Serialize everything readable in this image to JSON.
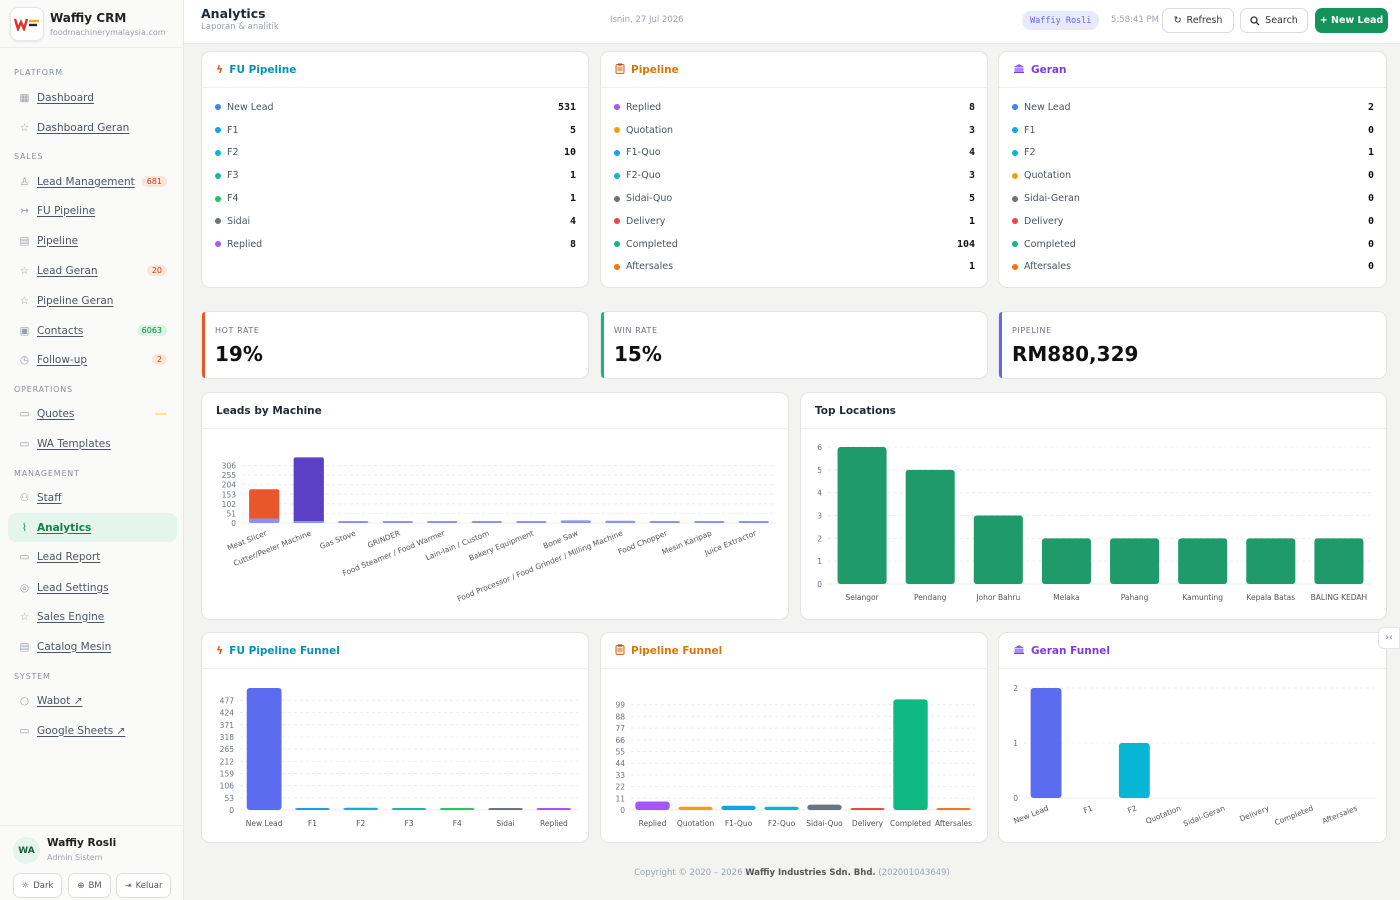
{
  "brand": {
    "name": "Waffiy CRM",
    "domain": "foodmachinerymalaysia.com"
  },
  "nav": {
    "sections": {
      "platform": "PLATFORM",
      "sales": "SALES",
      "operations": "OPERATIONS",
      "management": "MANAGEMENT",
      "system": "SYSTEM"
    },
    "items": [
      {
        "label": "Dashboard",
        "icon": "grid-icon"
      },
      {
        "label": "Dashboard Geran",
        "icon": "star-icon"
      },
      {
        "label": "Lead Management",
        "icon": "user-icon",
        "badge": "681"
      },
      {
        "label": "FU Pipeline",
        "icon": "arrows-icon"
      },
      {
        "label": "Pipeline",
        "icon": "table-icon"
      },
      {
        "label": "Lead Geran",
        "icon": "star-icon",
        "badge": "20"
      },
      {
        "label": "Pipeline Geran",
        "icon": "star-icon"
      },
      {
        "label": "Contacts",
        "icon": "contact-icon",
        "badge": "6063"
      },
      {
        "label": "Follow-up",
        "icon": "clock-icon",
        "badge": "2"
      },
      {
        "label": "Quotes",
        "icon": "document-icon"
      },
      {
        "label": "WA Templates",
        "icon": "document-icon"
      },
      {
        "label": "Staff",
        "icon": "users-icon"
      },
      {
        "label": "Analytics",
        "icon": "trend-icon"
      },
      {
        "label": "Lead Report",
        "icon": "document-icon"
      },
      {
        "label": "Lead Settings",
        "icon": "settings-icon"
      },
      {
        "label": "Sales Engine",
        "icon": "star-icon"
      },
      {
        "label": "Catalog Mesin",
        "icon": "table-icon"
      },
      {
        "label": "Wabot ↗",
        "icon": "chat-icon"
      },
      {
        "label": "Google Sheets ↗",
        "icon": "document-icon"
      }
    ]
  },
  "user": {
    "initials": "WA",
    "name": "Waffiy Rosli",
    "role": "Admin Sistem"
  },
  "footer_buttons": {
    "dark": "Dark",
    "lang": "BM",
    "logout": "Keluar"
  },
  "header": {
    "title": "Analytics",
    "subtitle": "Laporan & analitik",
    "date": "Isnin, 27 Jul 2026",
    "user_tag": "Waffiy Rosli",
    "time": "5:58:41 PM",
    "refresh": "Refresh",
    "search": "Search",
    "new_lead": "+ New Lead"
  },
  "colors": {
    "accent": "#13935a",
    "blue": "#3b82f6",
    "cyan": "#06b6d4",
    "green": "#22c55e",
    "emerald": "#10b981",
    "gray": "#6b7280",
    "purple": "#a855f7",
    "amber": "#f59e0b",
    "red": "#ef4444",
    "orange": "#f97316",
    "indigo": "#6366f1"
  },
  "fu_pipeline": {
    "title": "FU Pipeline",
    "rows": [
      {
        "label": "New Lead",
        "value": "531",
        "color": "#3b82f6"
      },
      {
        "label": "F1",
        "value": "5",
        "color": "#0ea5e9"
      },
      {
        "label": "F2",
        "value": "10",
        "color": "#06b6d4"
      },
      {
        "label": "F3",
        "value": "1",
        "color": "#14b8a6"
      },
      {
        "label": "F4",
        "value": "1",
        "color": "#22c55e"
      },
      {
        "label": "Sidai",
        "value": "4",
        "color": "#6b7280"
      },
      {
        "label": "Replied",
        "value": "8",
        "color": "#a855f7"
      }
    ]
  },
  "pipeline": {
    "title": "Pipeline",
    "rows": [
      {
        "label": "Replied",
        "value": "8",
        "color": "#a855f7"
      },
      {
        "label": "Quotation",
        "value": "3",
        "color": "#f59e0b"
      },
      {
        "label": "F1-Quo",
        "value": "4",
        "color": "#0ea5e9"
      },
      {
        "label": "F2-Quo",
        "value": "3",
        "color": "#06b6d4"
      },
      {
        "label": "Sidai-Quo",
        "value": "5",
        "color": "#6b7280"
      },
      {
        "label": "Delivery",
        "value": "1",
        "color": "#ef4444"
      },
      {
        "label": "Completed",
        "value": "104",
        "color": "#10b981"
      },
      {
        "label": "Aftersales",
        "value": "1",
        "color": "#f97316"
      }
    ]
  },
  "geran": {
    "title": "Geran",
    "rows": [
      {
        "label": "New Lead",
        "value": "2",
        "color": "#3b82f6"
      },
      {
        "label": "F1",
        "value": "0",
        "color": "#0ea5e9"
      },
      {
        "label": "F2",
        "value": "1",
        "color": "#06b6d4"
      },
      {
        "label": "Quotation",
        "value": "0",
        "color": "#f59e0b"
      },
      {
        "label": "Sidai-Geran",
        "value": "0",
        "color": "#6b7280"
      },
      {
        "label": "Delivery",
        "value": "0",
        "color": "#ef4444"
      },
      {
        "label": "Completed",
        "value": "0",
        "color": "#10b981"
      },
      {
        "label": "Aftersales",
        "value": "0",
        "color": "#f97316"
      }
    ]
  },
  "kpis": {
    "hot": {
      "label": "HOT RATE",
      "value": "19%",
      "color": "#e8572a"
    },
    "win": {
      "label": "WIN RATE",
      "value": "15%",
      "color": "#10b981"
    },
    "pipeline": {
      "label": "PIPELINE",
      "value": "RM880,329",
      "color": "#6366f1"
    }
  },
  "titles": {
    "leads_by_machine": "Leads by Machine",
    "top_locations": "Top Locations",
    "fu_funnel": "FU Pipeline Funnel",
    "pipeline_funnel": "Pipeline Funnel",
    "geran_funnel": "Geran Funnel"
  },
  "chart_data": [
    {
      "id": "leads_by_machine",
      "type": "bar",
      "title": "Leads by Machine",
      "categories": [
        "Meat Slicer",
        "Cutter/Peeler Machine",
        "Gas Stove",
        "GRINDER",
        "Food Steamer / Food Warmer",
        "Lain-lain / Custom",
        "Bakery Equipment",
        "Bone Saw",
        "Food Processor / Food Grinder / Milling Machine",
        "Food Chopper",
        "Mesin Karipap",
        "Juice Extractor"
      ],
      "series": [
        {
          "values": [
            180,
            0,
            0,
            0,
            0,
            0,
            0,
            0,
            0,
            0,
            0,
            0
          ]
        },
        {
          "values": [
            0,
            350,
            0,
            0,
            0,
            0,
            0,
            0,
            0,
            0,
            0,
            0
          ]
        },
        {
          "values": [
            0,
            0,
            0,
            0,
            0,
            0,
            0,
            0,
            0,
            0,
            0,
            0
          ]
        },
        {
          "values": [
            24,
            2,
            5,
            10,
            2,
            3,
            6,
            14,
            12,
            5,
            2,
            3
          ]
        }
      ],
      "colors": [
        "#e8572a",
        "#5b3fc4",
        "#10b981",
        "#8b93f0"
      ],
      "yticks": [
        0,
        51,
        102,
        153,
        204,
        255,
        306
      ],
      "ylim": [
        0,
        357
      ]
    },
    {
      "id": "top_locations",
      "type": "bar",
      "title": "Top Locations",
      "categories": [
        "Selangor",
        "Pendang",
        "Johor Bahru",
        "Melaka",
        "Pahang",
        "Kamunting",
        "Kepala Batas",
        "BALING KEDAH"
      ],
      "values": [
        6,
        5,
        3,
        2,
        2,
        2,
        2,
        2
      ],
      "color": "#1e9a6b",
      "yticks": [
        0,
        1,
        2,
        3,
        4,
        5,
        6
      ],
      "ylim": [
        0,
        6
      ]
    },
    {
      "id": "fu_funnel",
      "type": "bar",
      "title": "FU Pipeline Funnel",
      "categories": [
        "New Lead",
        "F1",
        "F2",
        "F3",
        "F4",
        "Sidai",
        "Replied"
      ],
      "values": [
        531,
        5,
        10,
        1,
        1,
        4,
        8
      ],
      "colors": [
        "#5b6cf0",
        "#0ea5e9",
        "#06b6d4",
        "#14b8a6",
        "#22c55e",
        "#6b7280",
        "#a855f7"
      ],
      "yticks": [
        0,
        53,
        106,
        159,
        212,
        265,
        318,
        371,
        424,
        477
      ],
      "ylim": [
        0,
        531
      ]
    },
    {
      "id": "pipeline_funnel",
      "type": "bar",
      "title": "Pipeline Funnel",
      "categories": [
        "Replied",
        "Quotation",
        "F1-Quo",
        "F2-Quo",
        "Sidai-Quo",
        "Delivery",
        "Completed",
        "Aftersales"
      ],
      "values": [
        8,
        3,
        4,
        3,
        5,
        1,
        104,
        1
      ],
      "colors": [
        "#a855f7",
        "#f59e0b",
        "#0ea5e9",
        "#06b6d4",
        "#6b7280",
        "#ef4444",
        "#10b981",
        "#f97316"
      ],
      "yticks": [
        0,
        11,
        22,
        33,
        44,
        55,
        66,
        77,
        88,
        99
      ],
      "ylim": [
        0,
        110
      ]
    },
    {
      "id": "geran_funnel",
      "type": "bar",
      "title": "Geran Funnel",
      "categories": [
        "New Lead",
        "F1",
        "F2",
        "Quotation",
        "Sidai-Geran",
        "Delivery",
        "Completed",
        "Aftersales"
      ],
      "values": [
        2,
        0,
        1,
        0,
        0,
        0,
        0,
        0
      ],
      "colors": [
        "#5b6cf0",
        "#0ea5e9",
        "#06b6d4",
        "#f59e0b",
        "#6b7280",
        "#ef4444",
        "#10b981",
        "#f97316"
      ],
      "yticks": [
        0,
        1,
        2
      ],
      "ylim": [
        0,
        2
      ]
    }
  ],
  "footer": {
    "prefix": "Copyright © 2020 – 2026",
    "company": "Waffiy Industries Sdn. Bhd.",
    "reg": "(202001043649)"
  }
}
